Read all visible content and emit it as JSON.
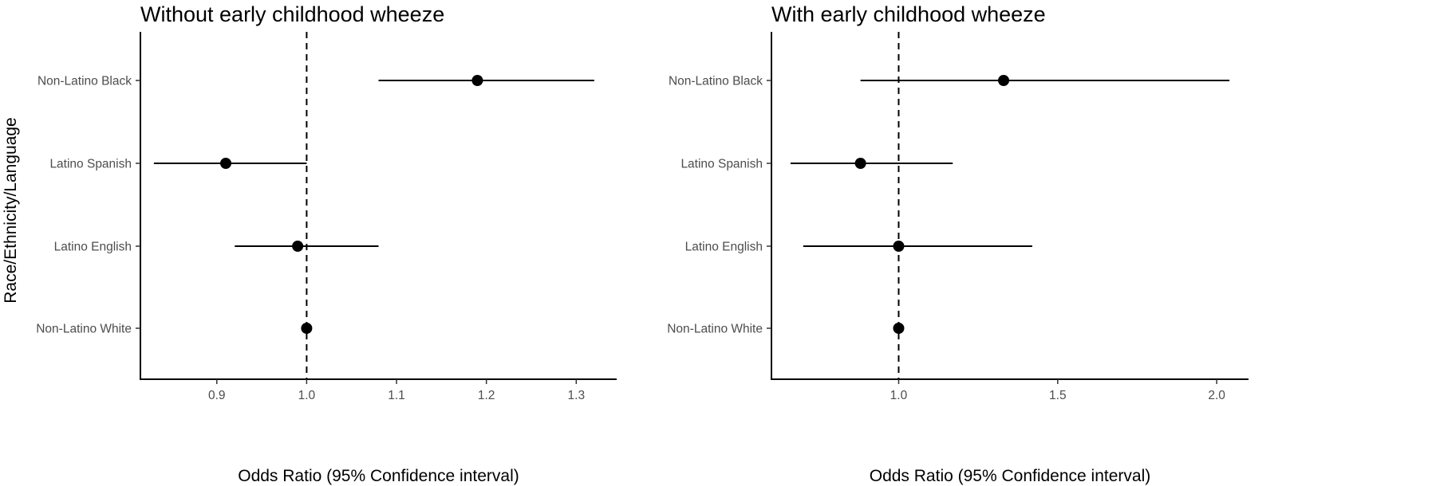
{
  "y_axis_label": "Race/Ethnicity/Language",
  "chart_data": [
    {
      "type": "scatter",
      "subtype": "forest-plot",
      "title": "Without early childhood wheeze",
      "xlabel": "Odds Ratio (95% Confidence interval)",
      "ylabel": "Race/Ethnicity/Language",
      "categories": [
        "Non-Latino Black",
        "Latino Spanish",
        "Latino English",
        "Non-Latino White"
      ],
      "estimates": [
        1.19,
        0.91,
        0.99,
        1.0
      ],
      "ci_lower": [
        1.08,
        0.83,
        0.92,
        1.0
      ],
      "ci_upper": [
        1.32,
        1.0,
        1.08,
        1.0
      ],
      "xlim": [
        0.815,
        1.345
      ],
      "xticks": [
        0.9,
        1.0,
        1.1,
        1.2,
        1.3
      ],
      "xtick_labels": [
        "0.9",
        "1.0",
        "1.1",
        "1.2",
        "1.3"
      ],
      "reference_line": 1.0,
      "grid": false
    },
    {
      "type": "scatter",
      "subtype": "forest-plot",
      "title": "With early childhood wheeze",
      "xlabel": "Odds Ratio (95% Confidence interval)",
      "ylabel": "",
      "categories": [
        "Non-Latino Black",
        "Latino Spanish",
        "Latino English",
        "Non-Latino White"
      ],
      "estimates": [
        1.33,
        0.88,
        1.0,
        1.0
      ],
      "ci_lower": [
        0.88,
        0.66,
        0.7,
        1.0
      ],
      "ci_upper": [
        2.04,
        1.17,
        1.42,
        1.0
      ],
      "xlim": [
        0.6,
        2.1
      ],
      "xticks": [
        1.0,
        1.5,
        2.0
      ],
      "xtick_labels": [
        "1.0",
        "1.5",
        "2.0"
      ],
      "reference_line": 1.0,
      "grid": false
    }
  ]
}
